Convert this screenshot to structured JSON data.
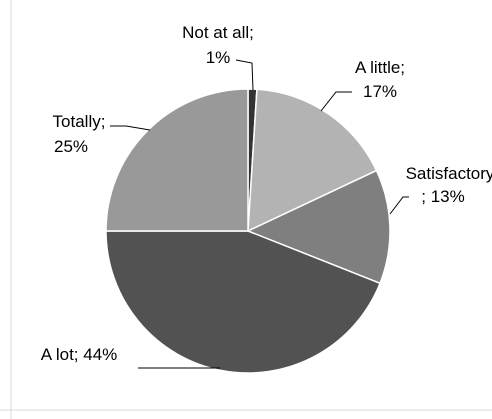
{
  "chart_data": {
    "type": "pie",
    "title": "",
    "slices": [
      {
        "category": "Not at all",
        "value": 1,
        "label": "Not at all;",
        "pct": "1%",
        "color": "#333333"
      },
      {
        "category": "A little",
        "value": 17,
        "label": "A little;",
        "pct": "17%",
        "color": "#b3b3b3"
      },
      {
        "category": "Satisfactory",
        "value": 13,
        "label": "Satisfactory",
        "pct": "; 13%",
        "color": "#7f7f7f"
      },
      {
        "category": "A lot",
        "value": 44,
        "label": "A lot; 44%",
        "pct": "",
        "color": "#525252"
      },
      {
        "category": "Totally",
        "value": 25,
        "label": "Totally;",
        "pct": "25%",
        "color": "#999999"
      }
    ],
    "legend": "none",
    "data_labels": "outside with leader lines"
  }
}
